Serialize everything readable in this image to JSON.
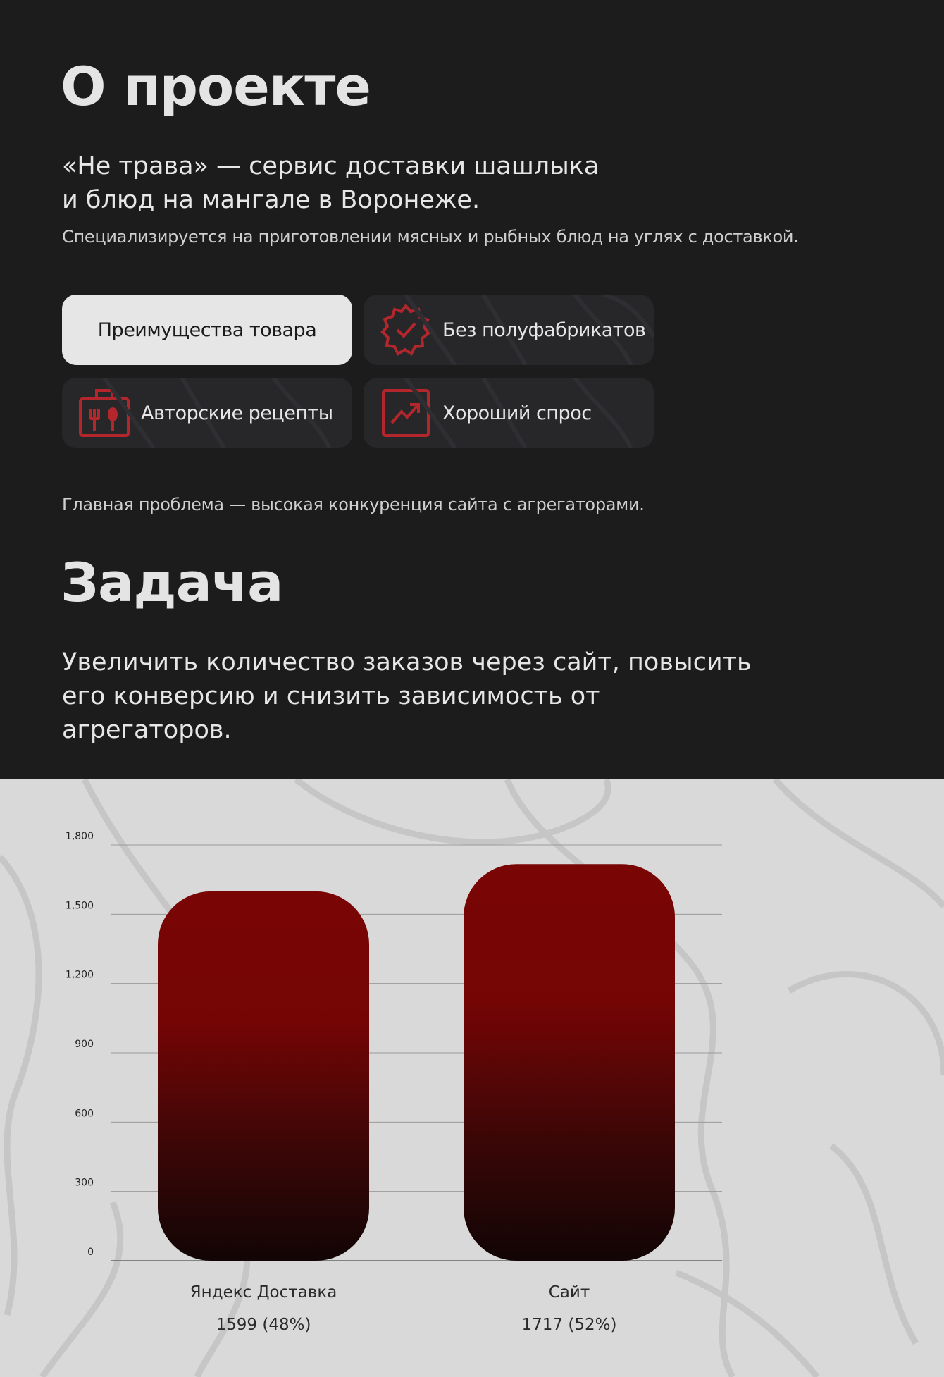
{
  "about": {
    "title": "О проекте",
    "lead_line1": "«Не трава» — сервис доставки шашлыка",
    "lead_line2": "и блюд на мангале в Воронеже.",
    "description": "Специализируется на приготовлении мясных и рыбных блюд на углях с доставкой.",
    "cards": [
      {
        "label": "Преимущества товара",
        "icon": null,
        "active": true
      },
      {
        "label": "Без полуфабрикатов",
        "icon": "badge-check-icon"
      },
      {
        "label": "Авторские рецепты",
        "icon": "lunchbox-cutlery-icon"
      },
      {
        "label": "Хороший спрос",
        "icon": "trending-up-icon"
      }
    ],
    "problem": "Главная проблема — высокая конкуренция сайта с агрегаторами."
  },
  "task": {
    "title": "Задача",
    "line1": "Увеличить количество заказов через сайт, повысить",
    "line2": "его конверсию и снизить зависимость от агрегаторов."
  },
  "colors": {
    "accent": "#b3262b",
    "bar_top": "#7a0505",
    "bar_bottom": "#120505",
    "dark_bg": "#1c1c1c",
    "light_bg": "#d9d9d9"
  },
  "chart_data": {
    "type": "bar",
    "categories": [
      "Яндекс Доставка",
      "Сайт"
    ],
    "values": [
      1599,
      1717
    ],
    "value_labels": [
      "1599 (48%)",
      "1717 (52%)"
    ],
    "ylim": [
      0,
      1800
    ],
    "yticks": [
      "0",
      "300",
      "600",
      "900",
      "1,200",
      "1,500",
      "1,800"
    ],
    "ytick_values": [
      0,
      300,
      600,
      900,
      1200,
      1500,
      1800
    ],
    "grid": true
  }
}
